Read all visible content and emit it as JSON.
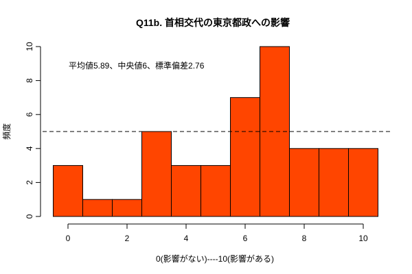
{
  "chart_data": {
    "type": "bar",
    "subtype": "histogram",
    "title": "Q11b. 首相交代の東京都政への影響",
    "xlabel": "0(影響がない)----10(影響がある)",
    "ylabel": "頻度",
    "categories": [
      "0",
      "1",
      "2",
      "3",
      "4",
      "5",
      "6",
      "7",
      "8",
      "9",
      "10"
    ],
    "values": [
      3,
      1,
      1,
      5,
      3,
      3,
      7,
      10,
      4,
      4,
      4
    ],
    "xlim": [
      -0.5,
      10.5
    ],
    "ylim": [
      0,
      10
    ],
    "x_ticks": [
      0,
      2,
      4,
      6,
      8,
      10
    ],
    "y_ticks": [
      0,
      2,
      4,
      6,
      8,
      10
    ],
    "reference_line": {
      "y": 5,
      "style": "dashed"
    },
    "annotation": "平均値5.89、中央値6、標準偏差2.76",
    "bar_color": "#FF4500",
    "grid": false,
    "legend": null
  }
}
